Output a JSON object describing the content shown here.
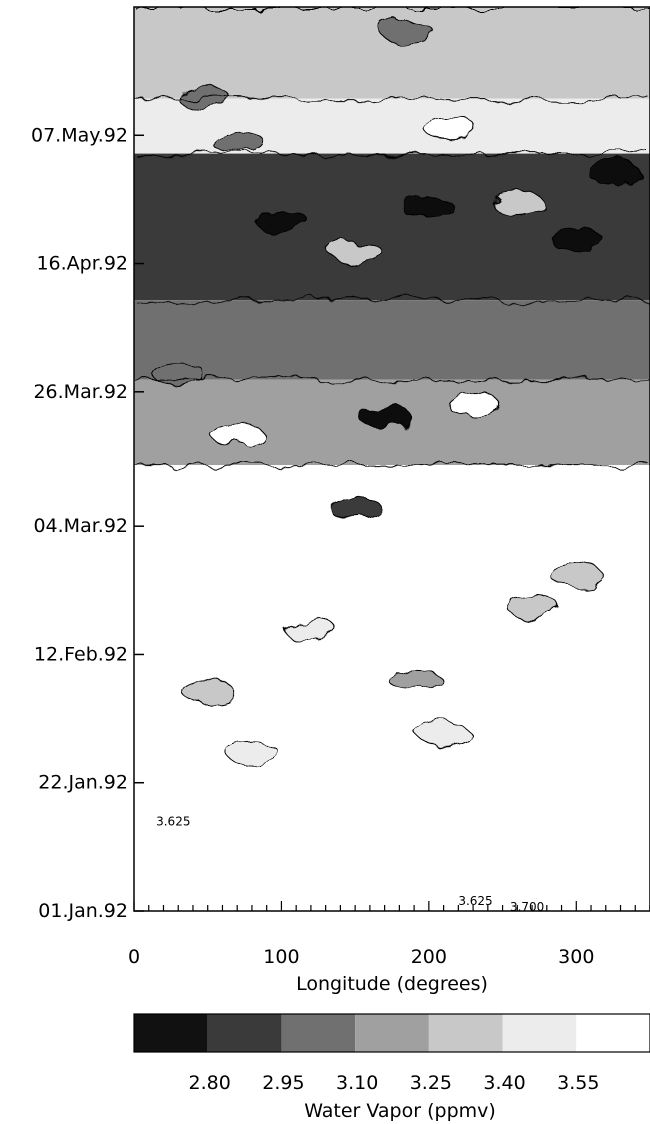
{
  "chart_data": {
    "type": "heatmap",
    "title": "",
    "xlabel": "Longitude (degrees)",
    "ylabel": "",
    "xlim": [
      0,
      350
    ],
    "x_ticks": [
      {
        "value": 0,
        "label": "0"
      },
      {
        "value": 100,
        "label": "100"
      },
      {
        "value": 200,
        "label": "200"
      },
      {
        "value": 300,
        "label": "300"
      }
    ],
    "y_ticks": [
      {
        "date": "1992-01-01",
        "label": "01.Jan.92"
      },
      {
        "date": "1992-01-22",
        "label": "22.Jan.92"
      },
      {
        "date": "1992-02-12",
        "label": "12.Feb.92"
      },
      {
        "date": "1992-03-04",
        "label": "04.Mar.92"
      },
      {
        "date": "1992-03-26",
        "label": "26.Mar.92"
      },
      {
        "date": "1992-04-16",
        "label": "16.Apr.92"
      },
      {
        "date": "1992-05-07",
        "label": "07.May.92"
      }
    ],
    "ylim": [
      "1992-01-01",
      "1992-05-28"
    ],
    "colorbar": {
      "label": "Water Vapor (ppmv)",
      "ticks": [
        "2.80",
        "2.95",
        "3.10",
        "3.25",
        "3.40",
        "3.55"
      ],
      "colors": [
        "#111111",
        "#3a3a3a",
        "#707070",
        "#a0a0a0",
        "#c8c8c8",
        "#ececec",
        "#ffffff"
      ]
    },
    "contour_labels": [
      {
        "text": "3.625",
        "longitude": 15,
        "date": "1992-01-15"
      },
      {
        "text": "3.625",
        "longitude": 220,
        "date": "1992-01-02"
      },
      {
        "text": "3.700",
        "longitude": 255,
        "date": "1992-01-01"
      }
    ],
    "bands": [
      {
        "from": "1992-05-13",
        "to": "1992-05-28",
        "value": 3.25
      },
      {
        "from": "1992-05-04",
        "to": "1992-05-13",
        "value": 3.5
      },
      {
        "from": "1992-04-10",
        "to": "1992-05-04",
        "value": 2.88
      },
      {
        "from": "1992-03-28",
        "to": "1992-04-10",
        "value": 3.0
      },
      {
        "from": "1992-03-14",
        "to": "1992-03-28",
        "value": 3.2
      },
      {
        "from": "1992-01-01",
        "to": "1992-03-14",
        "value": 3.55
      }
    ],
    "features": [
      {
        "longitude": 48,
        "date": "1992-05-13",
        "value": 2.95
      },
      {
        "longitude": 185,
        "date": "1992-05-24",
        "value": 2.95
      },
      {
        "longitude": 70,
        "date": "1992-05-06",
        "value": 2.95
      },
      {
        "longitude": 215,
        "date": "1992-05-08",
        "value": 3.62
      },
      {
        "longitude": 100,
        "date": "1992-04-23",
        "value": 2.75
      },
      {
        "longitude": 200,
        "date": "1992-04-25",
        "value": 2.75
      },
      {
        "longitude": 300,
        "date": "1992-04-20",
        "value": 2.75
      },
      {
        "longitude": 325,
        "date": "1992-05-01",
        "value": 2.75
      },
      {
        "longitude": 260,
        "date": "1992-04-26",
        "value": 3.25
      },
      {
        "longitude": 150,
        "date": "1992-04-18",
        "value": 3.25
      },
      {
        "longitude": 30,
        "date": "1992-03-29",
        "value": 2.95
      },
      {
        "longitude": 170,
        "date": "1992-03-22",
        "value": 2.75
      },
      {
        "longitude": 230,
        "date": "1992-03-24",
        "value": 3.55
      },
      {
        "longitude": 150,
        "date": "1992-03-07",
        "value": 2.8
      },
      {
        "longitude": 70,
        "date": "1992-03-19",
        "value": 3.55
      },
      {
        "longitude": 50,
        "date": "1992-02-06",
        "value": 3.25
      },
      {
        "longitude": 190,
        "date": "1992-02-08",
        "value": 3.1
      },
      {
        "longitude": 270,
        "date": "1992-02-20",
        "value": 3.25
      },
      {
        "longitude": 300,
        "date": "1992-02-25",
        "value": 3.25
      },
      {
        "longitude": 120,
        "date": "1992-02-16",
        "value": 3.45
      },
      {
        "longitude": 80,
        "date": "1992-01-27",
        "value": 3.45
      },
      {
        "longitude": 210,
        "date": "1992-01-30",
        "value": 3.45
      }
    ]
  }
}
